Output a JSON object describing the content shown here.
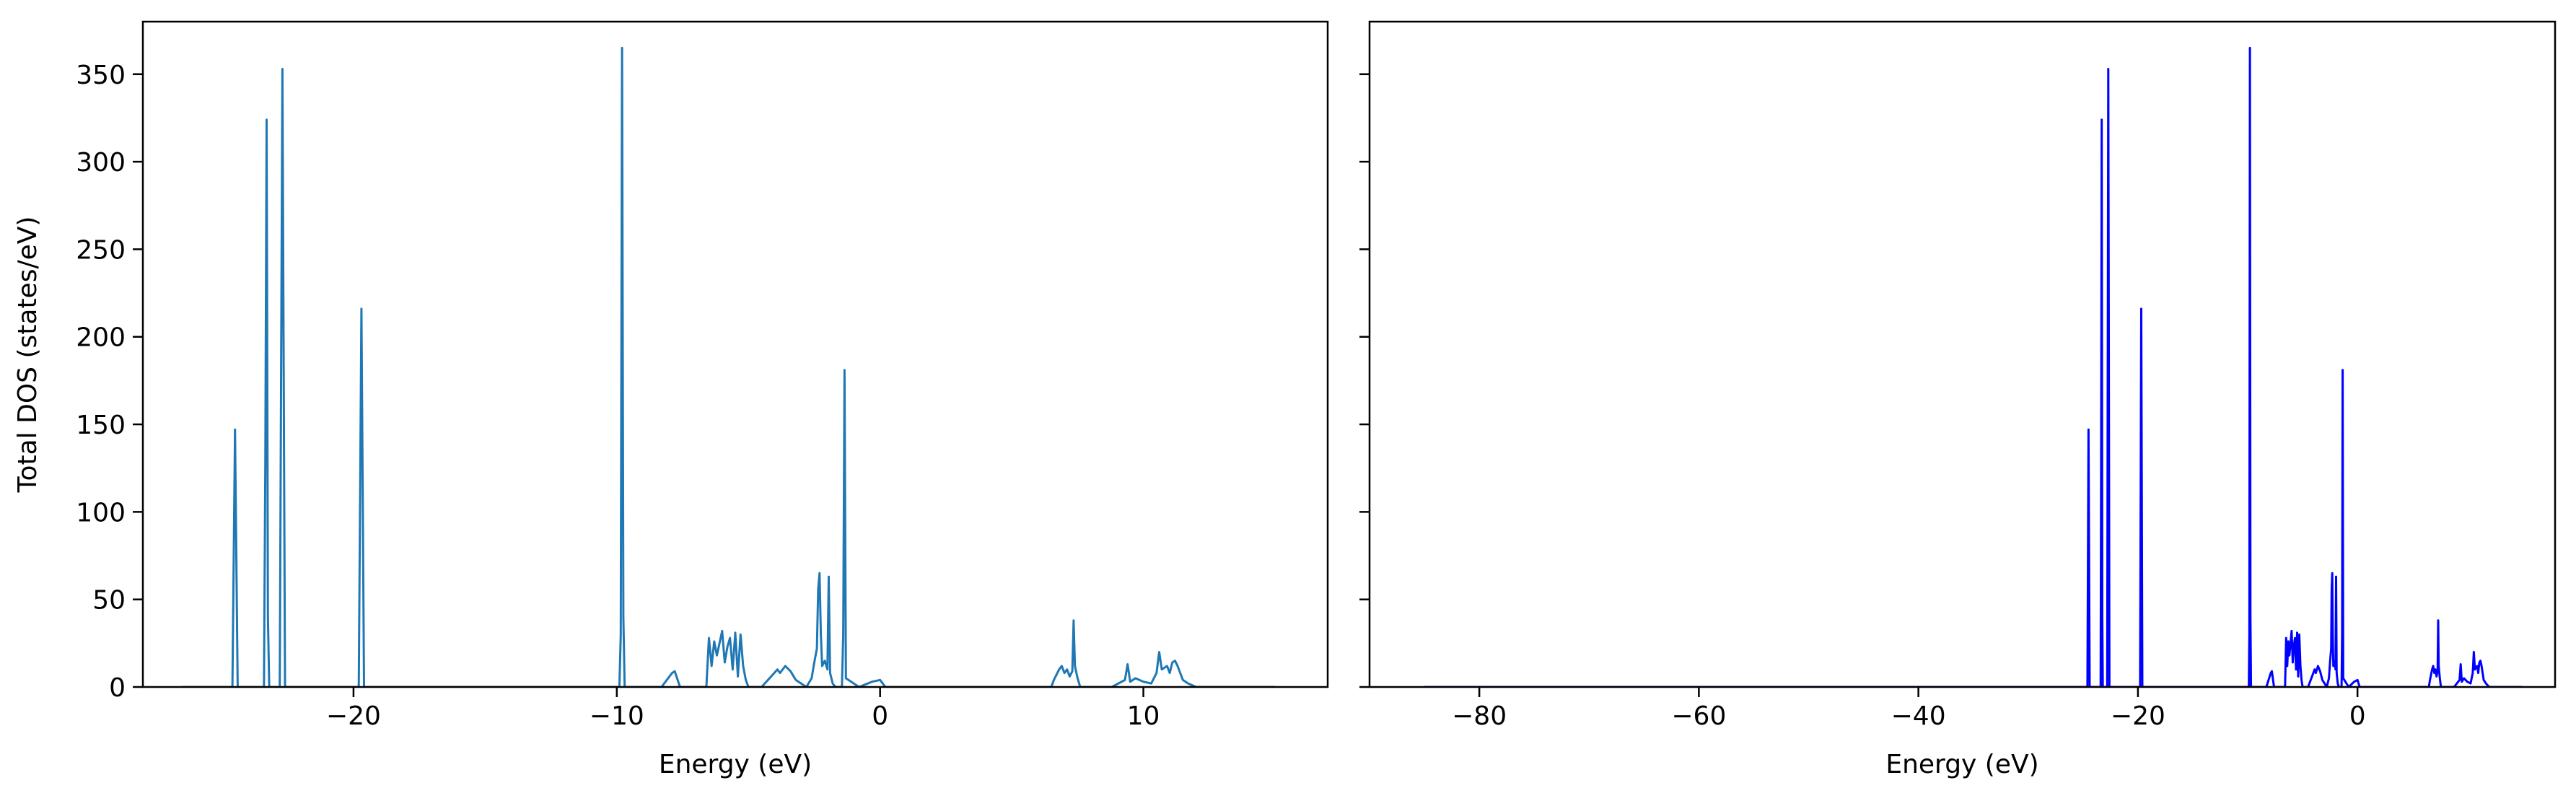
{
  "chart_data": [
    {
      "type": "line",
      "xlabel": "Energy (eV)",
      "ylabel": "Total DOS (states/eV)",
      "xlim": [
        -28,
        17
      ],
      "ylim": [
        0,
        380
      ],
      "xticks": [
        -20,
        -10,
        0,
        10
      ],
      "yticks": [
        0,
        50,
        100,
        150,
        200,
        250,
        300,
        350
      ],
      "xtick_labels": [
        "−20",
        "−10",
        "0",
        "10"
      ],
      "ytick_labels": [
        "0",
        "50",
        "100",
        "150",
        "200",
        "250",
        "300",
        "350"
      ],
      "grid": false,
      "color": "#1f77b4",
      "series": [
        {
          "x": [
            -26.5,
            -24.6,
            -24.5,
            -24.4,
            -23.4,
            -23.35,
            -23.3,
            -23.25,
            -23.2,
            -22.8,
            -22.7,
            -22.6,
            -19.8,
            -19.7,
            -19.6,
            -9.9,
            -9.85,
            -9.8,
            -9.75,
            -9.7,
            -8.3,
            -7.9,
            -7.8,
            -7.6,
            -6.6,
            -6.5,
            -6.4,
            -6.3,
            -6.2,
            -6.0,
            -5.9,
            -5.8,
            -5.7,
            -5.6,
            -5.5,
            -5.4,
            -5.3,
            -5.2,
            -5.1,
            -5.0,
            -4.5,
            -3.9,
            -3.8,
            -3.6,
            -3.4,
            -3.2,
            -3.0,
            -2.8,
            -2.6,
            -2.5,
            -2.4,
            -2.35,
            -2.3,
            -2.25,
            -2.2,
            -2.1,
            -2.0,
            -1.95,
            -1.9,
            -1.8,
            -1.7,
            -1.45,
            -1.4,
            -1.35,
            -1.3,
            -0.8,
            -0.3,
            0.0,
            0.2,
            6.5,
            6.6,
            6.8,
            6.9,
            7.0,
            7.1,
            7.2,
            7.3,
            7.35,
            7.4,
            7.5,
            7.6,
            8.8,
            9.3,
            9.4,
            9.5,
            9.7,
            10.0,
            10.3,
            10.5,
            10.6,
            10.7,
            10.9,
            11.0,
            11.1,
            11.2,
            11.3,
            11.5,
            11.7,
            12.0,
            15.0
          ],
          "y": [
            0,
            0,
            147,
            0,
            0,
            127,
            324,
            40,
            0,
            0,
            353,
            0,
            0,
            216,
            0,
            0,
            30,
            365,
            40,
            0,
            0,
            8,
            9,
            0,
            0,
            28,
            12,
            26,
            18,
            32,
            14,
            23,
            28,
            10,
            31,
            6,
            30,
            12,
            4,
            0,
            0,
            10,
            8,
            12,
            9,
            4,
            2,
            0,
            5,
            14,
            22,
            56,
            65,
            30,
            12,
            15,
            10,
            63,
            8,
            2,
            0,
            0,
            30,
            181,
            5,
            0,
            3,
            4,
            0,
            0,
            4,
            10,
            12,
            8,
            10,
            6,
            9,
            38,
            12,
            5,
            0,
            0,
            4,
            13,
            3,
            5,
            3,
            2,
            8,
            20,
            10,
            12,
            8,
            14,
            15,
            12,
            4,
            2,
            0,
            0
          ]
        }
      ]
    },
    {
      "type": "line",
      "xlabel": "Energy (eV)",
      "ylabel": "",
      "xlim": [
        -90,
        18
      ],
      "ylim": [
        0,
        380
      ],
      "xticks": [
        -80,
        -60,
        -40,
        -20,
        0
      ],
      "yticks": [
        0,
        50,
        100,
        150,
        200,
        250,
        300,
        350
      ],
      "xtick_labels": [
        "−80",
        "−60",
        "−40",
        "−20",
        "0"
      ],
      "grid": false,
      "color": "#0000ff",
      "series": [
        {
          "x": [
            -85.0,
            -24.6,
            -24.5,
            -24.4,
            -23.4,
            -23.35,
            -23.3,
            -23.25,
            -23.2,
            -22.8,
            -22.7,
            -22.6,
            -19.8,
            -19.7,
            -19.6,
            -9.9,
            -9.85,
            -9.8,
            -9.75,
            -9.7,
            -8.3,
            -7.9,
            -7.8,
            -7.6,
            -6.6,
            -6.5,
            -6.4,
            -6.3,
            -6.2,
            -6.0,
            -5.9,
            -5.8,
            -5.7,
            -5.6,
            -5.5,
            -5.4,
            -5.3,
            -5.2,
            -5.1,
            -5.0,
            -4.5,
            -3.9,
            -3.8,
            -3.6,
            -3.4,
            -3.2,
            -3.0,
            -2.8,
            -2.6,
            -2.5,
            -2.4,
            -2.35,
            -2.3,
            -2.25,
            -2.2,
            -2.1,
            -2.0,
            -1.95,
            -1.9,
            -1.8,
            -1.7,
            -1.45,
            -1.4,
            -1.35,
            -1.3,
            -0.8,
            -0.3,
            0.0,
            0.2,
            6.5,
            6.6,
            6.8,
            6.9,
            7.0,
            7.1,
            7.2,
            7.3,
            7.35,
            7.4,
            7.5,
            7.6,
            8.8,
            9.3,
            9.4,
            9.5,
            9.7,
            10.0,
            10.3,
            10.5,
            10.6,
            10.7,
            10.9,
            11.0,
            11.1,
            11.2,
            11.3,
            11.5,
            11.7,
            12.0,
            15.0
          ],
          "y": [
            0,
            0,
            147,
            0,
            0,
            127,
            324,
            40,
            0,
            0,
            353,
            0,
            0,
            216,
            0,
            0,
            30,
            365,
            40,
            0,
            0,
            8,
            9,
            0,
            0,
            28,
            12,
            26,
            18,
            32,
            14,
            23,
            28,
            10,
            31,
            6,
            30,
            12,
            4,
            0,
            0,
            10,
            8,
            12,
            9,
            4,
            2,
            0,
            5,
            14,
            22,
            56,
            65,
            30,
            12,
            15,
            10,
            63,
            8,
            2,
            0,
            0,
            30,
            181,
            5,
            0,
            3,
            4,
            0,
            0,
            4,
            10,
            12,
            8,
            10,
            6,
            9,
            38,
            12,
            5,
            0,
            0,
            4,
            13,
            3,
            5,
            3,
            2,
            8,
            20,
            10,
            12,
            8,
            14,
            15,
            12,
            4,
            2,
            0,
            0
          ]
        }
      ]
    }
  ]
}
